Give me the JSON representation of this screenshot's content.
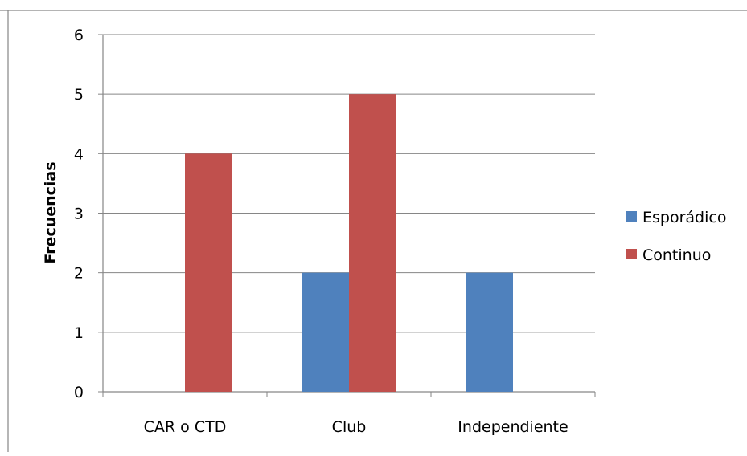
{
  "chart_data": {
    "type": "bar",
    "title": "",
    "xlabel": "",
    "ylabel": "Frecuencias",
    "categories": [
      "CAR o CTD",
      "Club",
      "Independiente"
    ],
    "series": [
      {
        "name": "Esporádico",
        "values": [
          0,
          2,
          2
        ],
        "color": "#4f81bd"
      },
      {
        "name": "Continuo",
        "values": [
          4,
          5,
          0
        ],
        "color": "#c0504d"
      }
    ],
    "ylim": [
      0,
      6
    ],
    "yticks": [
      "0",
      "1",
      "2",
      "3",
      "4",
      "5",
      "6"
    ],
    "grid": true,
    "legend_position": "right"
  }
}
